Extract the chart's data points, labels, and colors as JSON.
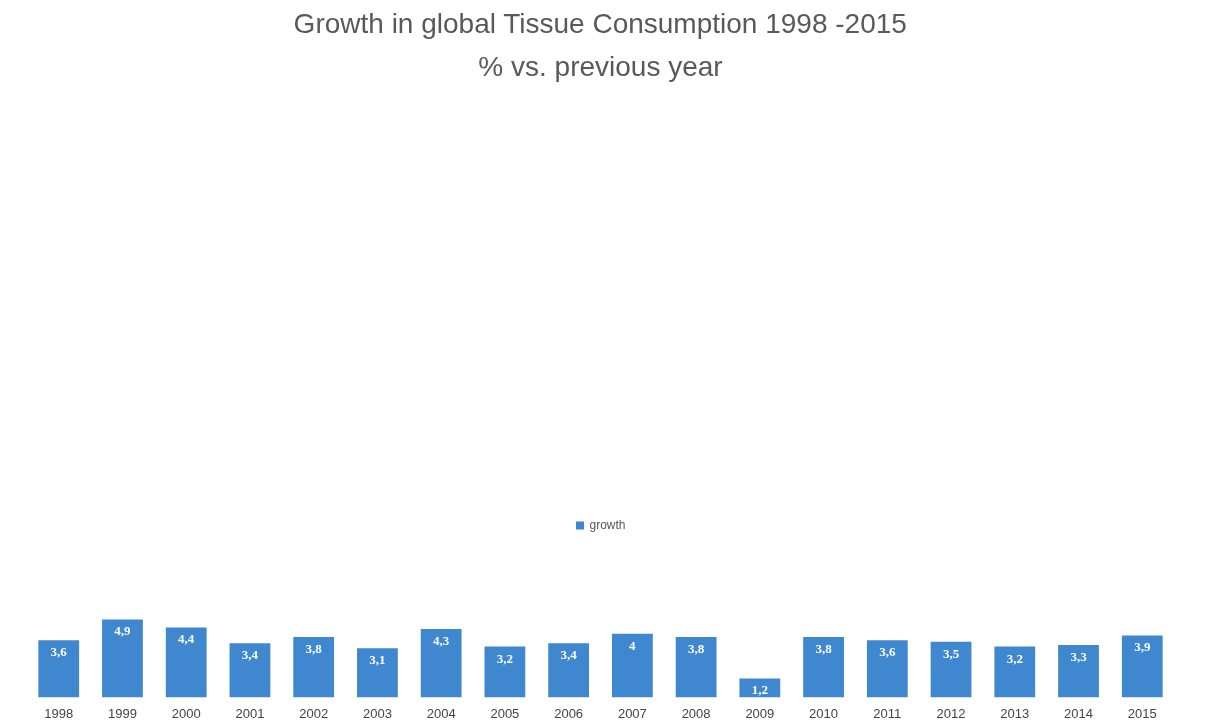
{
  "chart_data": {
    "type": "bar",
    "title": "Growth in global Tissue Consumption 1998 -2015",
    "subtitle": "% vs. previous year",
    "categories": [
      "1998",
      "1999",
      "2000",
      "2001",
      "2002",
      "2003",
      "2004",
      "2005",
      "2006",
      "2007",
      "2008",
      "2009",
      "2010",
      "2011",
      "2012",
      "2013",
      "2014",
      "2015"
    ],
    "series": [
      {
        "name": "growth",
        "color": "#3f87cf",
        "values": [
          3.6,
          4.9,
          4.4,
          3.4,
          3.8,
          3.1,
          4.3,
          3.2,
          3.4,
          4,
          3.8,
          1.2,
          3.8,
          3.6,
          3.5,
          3.2,
          3.3,
          3.9
        ],
        "value_labels": [
          "3,6",
          "4,9",
          "4,4",
          "3,4",
          "3,8",
          "3,1",
          "4,3",
          "3,2",
          "3,4",
          "4",
          "3,8",
          "1,2",
          "3,8",
          "3,6",
          "3,5",
          "3,2",
          "3,3",
          "3,9"
        ]
      }
    ],
    "legend": "top",
    "grid": false,
    "tick_labels": "x"
  }
}
